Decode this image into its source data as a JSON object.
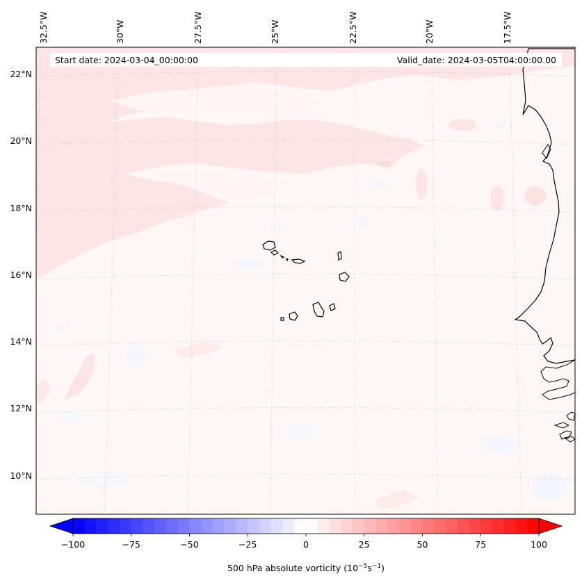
{
  "header": {
    "start_date": "Start date: 2024-03-04_00:00:00",
    "valid_date": "Valid_date: 2024-03-05T04:00:00.00"
  },
  "longitude_labels": [
    "32.5°W",
    "30°W",
    "27.5°W",
    "25°W",
    "22.5°W",
    "20°W",
    "17.5°W"
  ],
  "latitude_labels": [
    "22°N",
    "20°N",
    "18°N",
    "16°N",
    "14°N",
    "12°N",
    "10°N"
  ],
  "colorbar": {
    "title": "500 hPa absolute vorticity (10",
    "title_exp1": "−5",
    "title_mid": "s",
    "title_exp2": "−1",
    "title_end": ")",
    "ticks": [
      "−100",
      "−75",
      "−50",
      "−25",
      "0",
      "25",
      "50",
      "75",
      "100"
    ],
    "min": -100,
    "max": 100,
    "colormap": "bwr",
    "extend": "both"
  },
  "colors": {
    "land_outline": "#000000",
    "gridline": "#bbbbbb",
    "weak_positive_vorticity": "#fde6e6",
    "near_zero": "#fff7f6",
    "weak_negative_vorticity": "#f3f5ff"
  }
}
